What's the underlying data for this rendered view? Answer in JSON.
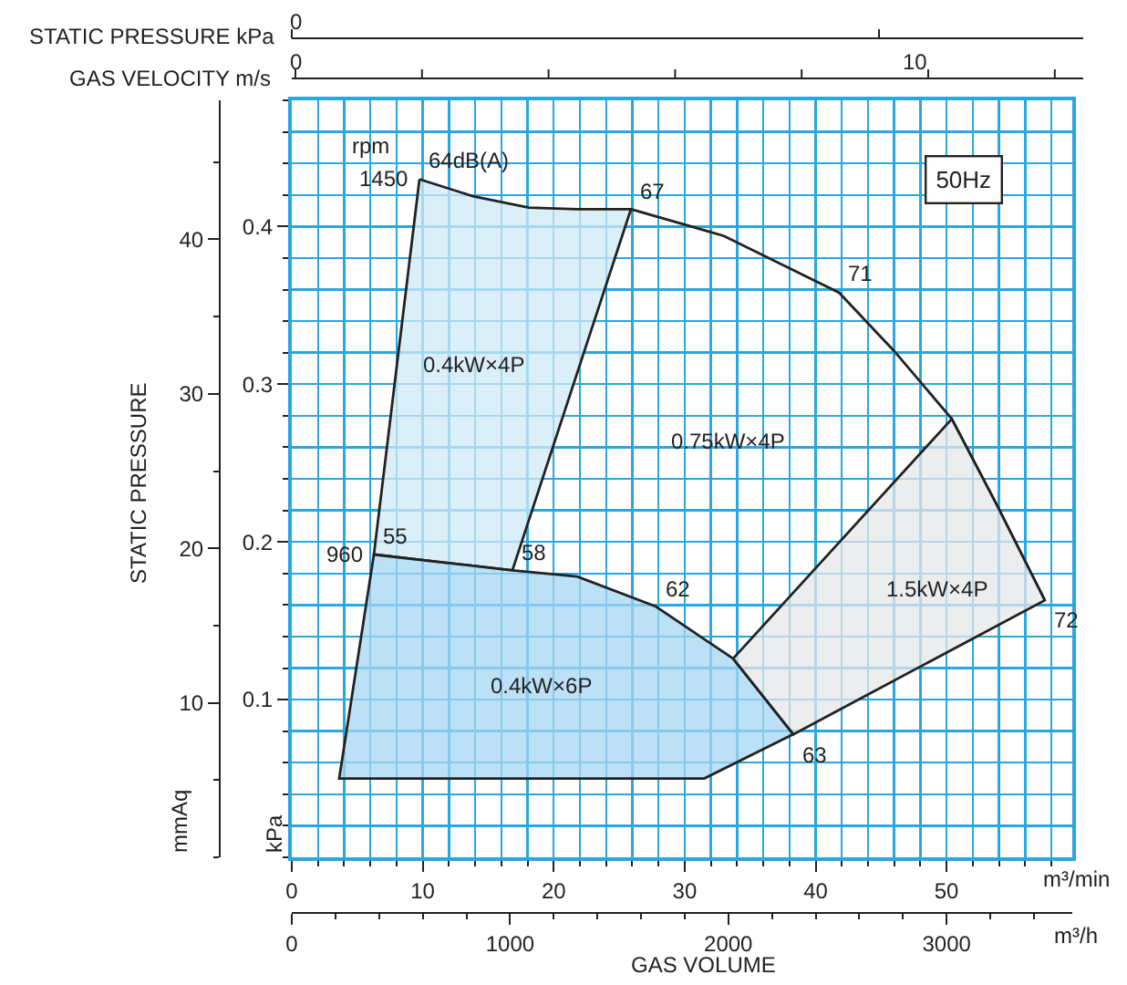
{
  "chart_data": {
    "type": "area",
    "xlabel": "m³/min",
    "x2label": "m³/h",
    "ylabel": "kPa",
    "y2label": "mmAq",
    "xlim": [
      0,
      59.6
    ],
    "xticks": [
      0,
      10,
      20,
      30,
      40,
      50
    ],
    "x2lim": [
      0,
      3576
    ],
    "x2ticks": [
      0,
      1000,
      2000,
      3000
    ],
    "ylim": [
      0,
      0.48
    ],
    "yticks": [
      0.1,
      0.2,
      0.3,
      0.4
    ],
    "y2lim": [
      0,
      49
    ],
    "y2ticks": [
      10,
      20,
      30,
      40
    ],
    "grid": true,
    "series": [
      {
        "color": "#cfe9f7",
        "x": [
          9.75,
          13.9,
          18.1,
          21.8,
          25.9,
          16.85,
          11.5,
          6.27,
          9.75
        ],
        "values": [
          0.43,
          0.419,
          0.412,
          0.411,
          0.411,
          0.182,
          0.187,
          0.192,
          0.43
        ]
      },
      {
        "type": "line",
        "color": "#222222",
        "x": [
          25.9,
          33.0,
          41.8,
          46.0,
          50.4,
          53.8,
          57.5
        ],
        "values": [
          0.411,
          0.394,
          0.358,
          0.321,
          0.278,
          0.224,
          0.163
        ]
      },
      {
        "color": "#a6d6f2",
        "x": [
          6.27,
          11.5,
          16.85,
          21.8,
          27.8,
          33.7,
          38.3,
          31.5,
          3.62,
          6.27
        ],
        "values": [
          0.192,
          0.187,
          0.182,
          0.178,
          0.159,
          0.126,
          0.078,
          0.05,
          0.05,
          0.192
        ]
      },
      {
        "color": "#e4e7ea",
        "x": [
          33.7,
          50.4,
          53.8,
          57.5,
          38.3,
          33.7
        ],
        "values": [
          0.126,
          0.278,
          0.224,
          0.163,
          0.078,
          0.126
        ]
      }
    ],
    "annotations": [
      "GAS VOLUME",
      "STATIC PRESSURE",
      "rpm",
      "50Hz",
      "0.4kW×4P",
      "0.75kW×4P",
      "1.5kW×4P",
      "0.4kW×6P",
      "STATIC PRESSURE kPa",
      "0",
      "GAS VELOCITY m/s",
      "0",
      "10",
      {
        "text": "1450",
        "x": 9.75,
        "y": 0.43
      },
      {
        "text": "64dB(A)",
        "x": 9.75,
        "y": 0.43
      },
      {
        "text": "67",
        "x": 25.9,
        "y": 0.411
      },
      {
        "text": "71",
        "x": 41.8,
        "y": 0.358
      },
      {
        "text": "72",
        "x": 57.5,
        "y": 0.163
      },
      {
        "text": "960",
        "x": 6.27,
        "y": 0.192
      },
      {
        "text": "55",
        "x": 6.27,
        "y": 0.192
      },
      {
        "text": "58",
        "x": 16.85,
        "y": 0.182
      },
      {
        "text": "62",
        "x": 27.8,
        "y": 0.159
      },
      {
        "text": "63",
        "x": 38.3,
        "y": 0.078
      }
    ]
  }
}
